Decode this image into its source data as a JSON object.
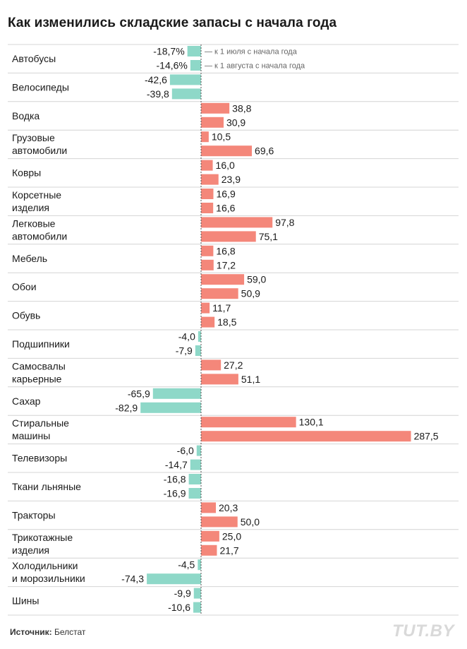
{
  "title": "Как изменились складские запасы с начала года",
  "source_label": "Источник:",
  "source_value": "Белстат",
  "brand": "TUT.BY",
  "colors": {
    "positive": "#f4877a",
    "negative": "#8ed8c8",
    "zero_line": "#555555",
    "separator": "#d4d4d4"
  },
  "chart_data": {
    "type": "bar",
    "orientation": "horizontal",
    "series": [
      {
        "name": "— к 1 июля с начала года"
      },
      {
        "name": "— к 1 августа с начала года"
      }
    ],
    "categories": [
      {
        "lines": [
          "Автобусы"
        ],
        "values": [
          -18.7,
          -14.6
        ],
        "labels": [
          "-18,7%",
          "-14,6%"
        ]
      },
      {
        "lines": [
          "Велосипеды"
        ],
        "values": [
          -42.6,
          -39.8
        ],
        "labels": [
          "-42,6",
          "-39,8"
        ]
      },
      {
        "lines": [
          "Водка"
        ],
        "values": [
          38.8,
          30.9
        ],
        "labels": [
          "38,8",
          "30,9"
        ]
      },
      {
        "lines": [
          "Грузовые",
          "автомобили"
        ],
        "values": [
          10.5,
          69.6
        ],
        "labels": [
          "10,5",
          "69,6"
        ]
      },
      {
        "lines": [
          "Ковры"
        ],
        "values": [
          16.0,
          23.9
        ],
        "labels": [
          "16,0",
          "23,9"
        ]
      },
      {
        "lines": [
          "Корсетные",
          "изделия"
        ],
        "values": [
          16.9,
          16.6
        ],
        "labels": [
          "16,9",
          "16,6"
        ]
      },
      {
        "lines": [
          "Легковые",
          "автомобили"
        ],
        "values": [
          97.8,
          75.1
        ],
        "labels": [
          "97,8",
          "75,1"
        ]
      },
      {
        "lines": [
          "Мебель"
        ],
        "values": [
          16.8,
          17.2
        ],
        "labels": [
          "16,8",
          "17,2"
        ]
      },
      {
        "lines": [
          "Обои"
        ],
        "values": [
          59.0,
          50.9
        ],
        "labels": [
          "59,0",
          "50,9"
        ]
      },
      {
        "lines": [
          "Обувь"
        ],
        "values": [
          11.7,
          18.5
        ],
        "labels": [
          "11,7",
          "18,5"
        ]
      },
      {
        "lines": [
          "Подшипники"
        ],
        "values": [
          -4.0,
          -7.9
        ],
        "labels": [
          "-4,0",
          "-7,9"
        ]
      },
      {
        "lines": [
          "Самосвалы",
          "карьерные"
        ],
        "values": [
          27.2,
          51.1
        ],
        "labels": [
          "27,2",
          "51,1"
        ]
      },
      {
        "lines": [
          "Сахар"
        ],
        "values": [
          -65.9,
          -82.9
        ],
        "labels": [
          "-65,9",
          "-82,9"
        ]
      },
      {
        "lines": [
          "Стиральные",
          "машины"
        ],
        "values": [
          130.1,
          287.5
        ],
        "labels": [
          "130,1",
          "287,5"
        ]
      },
      {
        "lines": [
          "Телевизоры"
        ],
        "values": [
          -6.0,
          -14.7
        ],
        "labels": [
          "-6,0",
          "-14,7"
        ]
      },
      {
        "lines": [
          "Ткани льняные"
        ],
        "values": [
          -16.8,
          -16.9
        ],
        "labels": [
          "-16,8",
          "-16,9"
        ]
      },
      {
        "lines": [
          "Тракторы"
        ],
        "values": [
          20.3,
          50.0
        ],
        "labels": [
          "20,3",
          "50,0"
        ]
      },
      {
        "lines": [
          "Трикотажные",
          "изделия"
        ],
        "values": [
          25.0,
          21.7
        ],
        "labels": [
          "25,0",
          "21,7"
        ]
      },
      {
        "lines": [
          "Холодильники",
          "и морозильники"
        ],
        "values": [
          -4.5,
          -74.3
        ],
        "labels": [
          "-4,5",
          "-74,3"
        ]
      },
      {
        "lines": [
          "Шины"
        ],
        "values": [
          -9.9,
          -10.6
        ],
        "labels": [
          "-9,9",
          "-10,6"
        ]
      }
    ]
  }
}
